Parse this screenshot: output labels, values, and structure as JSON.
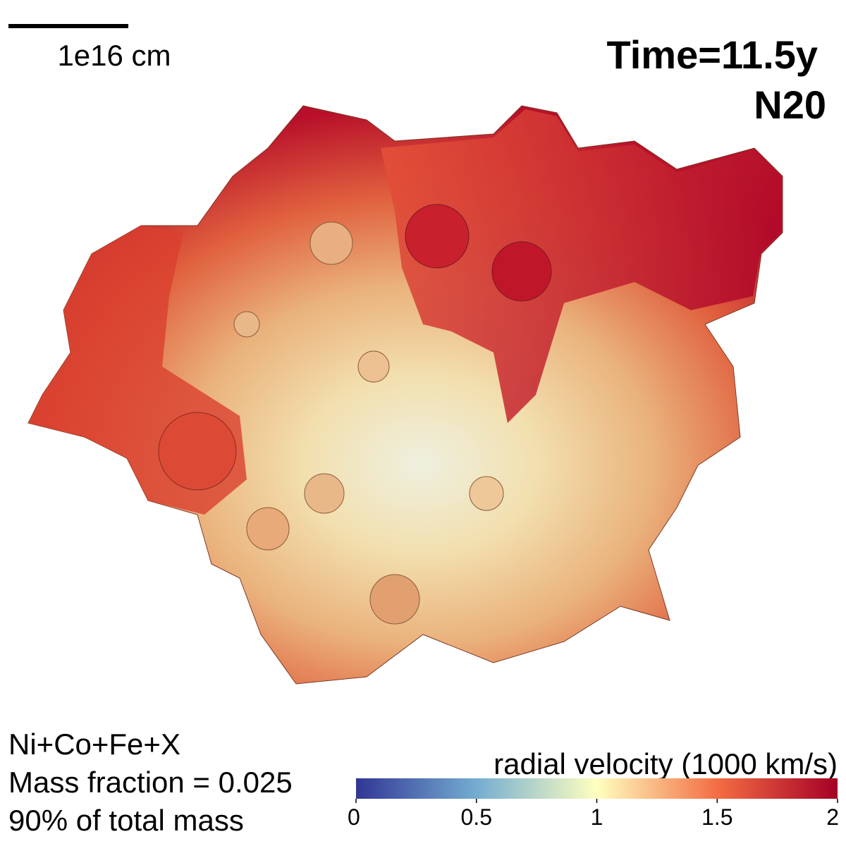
{
  "scale_bar": {
    "label": "1e16 cm"
  },
  "header": {
    "time": "Time=11.5y",
    "model": "N20"
  },
  "annotation": {
    "lines": [
      "Ni+Co+Fe+X",
      "Mass fraction = 0.025",
      "90% of total mass"
    ]
  },
  "colorbar": {
    "label": "radial velocity (1000 km/s)",
    "lim": [
      0,
      2
    ],
    "ticks": [
      0,
      0.5,
      1,
      1.5,
      2
    ],
    "colors": [
      "#313695",
      "#74add1",
      "#ffffbf",
      "#f46d43",
      "#a50026"
    ]
  }
}
